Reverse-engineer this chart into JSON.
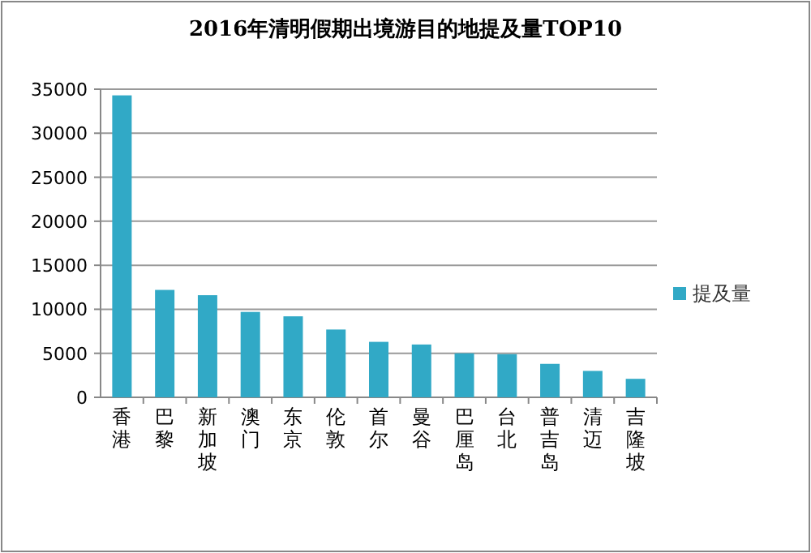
{
  "chart_data": {
    "type": "bar",
    "title": "2016年清明假期出境游目的地提及量TOP10",
    "categories": [
      "香港",
      "巴黎",
      "新加坡",
      "澳门",
      "东京",
      "伦敦",
      "首尔",
      "曼谷",
      "巴厘岛",
      "台北",
      "普吉岛",
      "清迈",
      "吉隆坡"
    ],
    "series": [
      {
        "name": "提及量",
        "color": "#31a9c6",
        "values": [
          34300,
          12200,
          11600,
          9700,
          9200,
          7700,
          6300,
          6000,
          5000,
          4900,
          3800,
          3000,
          2100
        ]
      }
    ],
    "ylim": [
      0,
      35000
    ],
    "yticks": [
      0,
      5000,
      10000,
      15000,
      20000,
      25000,
      30000,
      35000
    ],
    "grid": "y",
    "legend": "right"
  }
}
